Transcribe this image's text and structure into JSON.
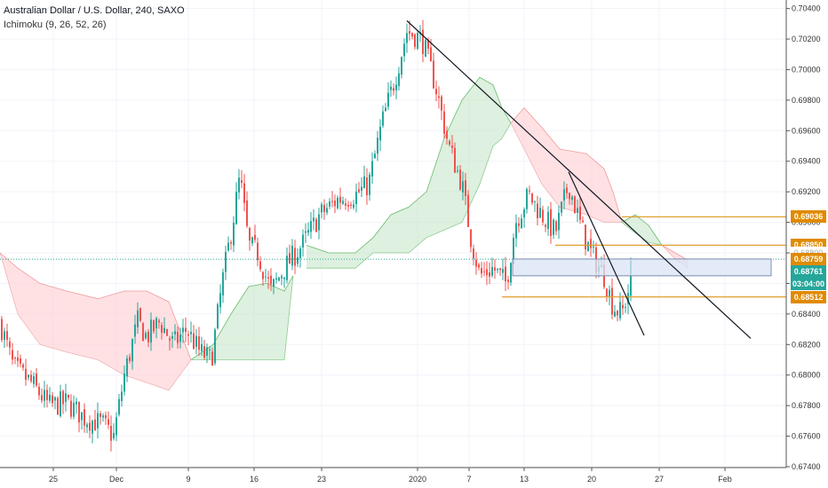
{
  "header": {
    "title": "Australian Dollar / U.S. Dollar, 240, SAXO",
    "indicator": "Ichimoku (9, 26, 52, 26)"
  },
  "colors": {
    "up": "#26a69a",
    "down": "#ef5350",
    "cloud_bull": "#c8e6c9",
    "cloud_bear": "#ffcdd2",
    "level_line": "#e0a030",
    "level_box_bg": "#e08a00",
    "current_box_bg": "#26a69a",
    "zone_fill": "#dbe4f5",
    "trendline": "#131722"
  },
  "chart_data": {
    "type": "candlestick",
    "title": "Australian Dollar / U.S. Dollar, 240, SAXO",
    "indicator": "Ichimoku (9, 26, 52, 26)",
    "ylim": [
      0.674,
      0.7045
    ],
    "y_ticks": [
      "0.70400",
      "0.70200",
      "0.70000",
      "0.69800",
      "0.69600",
      "0.69400",
      "0.69200",
      "0.69000",
      "0.68800",
      "0.68600",
      "0.68400",
      "0.68200",
      "0.68000",
      "0.67800",
      "0.67600",
      "0.67400"
    ],
    "x_ticks": [
      "25",
      "Dec",
      "9",
      "16",
      "23",
      "2020",
      "7",
      "13",
      "20",
      "27",
      "Feb"
    ],
    "path": [
      [
        0,
        0.6835
      ],
      [
        15,
        0.6805
      ],
      [
        35,
        0.6795
      ],
      [
        55,
        0.678
      ],
      [
        75,
        0.6782
      ],
      [
        95,
        0.6772
      ],
      [
        115,
        0.6768
      ],
      [
        128,
        0.676
      ],
      [
        140,
        0.68
      ],
      [
        155,
        0.6835
      ],
      [
        165,
        0.6825
      ],
      [
        180,
        0.6835
      ],
      [
        195,
        0.682
      ],
      [
        210,
        0.683
      ],
      [
        225,
        0.6815
      ],
      [
        238,
        0.681
      ],
      [
        250,
        0.686
      ],
      [
        262,
        0.69
      ],
      [
        270,
        0.693
      ],
      [
        280,
        0.6885
      ],
      [
        290,
        0.688
      ],
      [
        305,
        0.6855
      ],
      [
        320,
        0.687
      ],
      [
        340,
        0.6885
      ],
      [
        360,
        0.6905
      ],
      [
        380,
        0.6915
      ],
      [
        400,
        0.6918
      ],
      [
        415,
        0.6925
      ],
      [
        430,
        0.6965
      ],
      [
        445,
        0.6995
      ],
      [
        458,
        0.7025
      ],
      [
        475,
        0.702
      ],
      [
        490,
        0.699
      ],
      [
        505,
        0.695
      ],
      [
        520,
        0.6925
      ],
      [
        530,
        0.689
      ],
      [
        540,
        0.6865
      ],
      [
        555,
        0.687
      ],
      [
        570,
        0.686
      ],
      [
        580,
        0.69
      ],
      [
        595,
        0.6918
      ],
      [
        610,
        0.6905
      ],
      [
        625,
        0.6893
      ],
      [
        640,
        0.6925
      ],
      [
        655,
        0.6895
      ],
      [
        665,
        0.688
      ],
      [
        680,
        0.6865
      ],
      [
        690,
        0.6845
      ],
      [
        700,
        0.684
      ],
      [
        707,
        0.6855
      ],
      [
        710,
        0.6875
      ]
    ],
    "cloud": {
      "bull": [
        {
          "x0": 215,
          "x1": 330,
          "top": [
            [
              215,
              0.681
            ],
            [
              240,
              0.682
            ],
            [
              260,
              0.684
            ],
            [
              280,
              0.6858
            ],
            [
              300,
              0.686
            ],
            [
              320,
              0.6855
            ],
            [
              330,
              0.6865
            ]
          ],
          "bottom": [
            [
              215,
              0.681
            ],
            [
              240,
              0.681
            ],
            [
              260,
              0.681
            ],
            [
              280,
              0.681
            ],
            [
              300,
              0.681
            ],
            [
              320,
              0.681
            ],
            [
              330,
              0.6865
            ]
          ]
        },
        {
          "x0": 345,
          "x1": 575,
          "top": [
            [
              345,
              0.6885
            ],
            [
              370,
              0.688
            ],
            [
              400,
              0.688
            ],
            [
              420,
              0.689
            ],
            [
              440,
              0.6905
            ],
            [
              460,
              0.691
            ],
            [
              480,
              0.692
            ],
            [
              500,
              0.6955
            ],
            [
              520,
              0.698
            ],
            [
              540,
              0.6995
            ],
            [
              555,
              0.699
            ],
            [
              565,
              0.6975
            ],
            [
              575,
              0.6965
            ]
          ],
          "bottom": [
            [
              345,
              0.687
            ],
            [
              370,
              0.687
            ],
            [
              400,
              0.687
            ],
            [
              420,
              0.688
            ],
            [
              440,
              0.688
            ],
            [
              460,
              0.688
            ],
            [
              480,
              0.689
            ],
            [
              500,
              0.6895
            ],
            [
              520,
              0.69
            ],
            [
              540,
              0.6925
            ],
            [
              555,
              0.695
            ],
            [
              565,
              0.6955
            ],
            [
              575,
              0.6965
            ]
          ]
        },
        {
          "x0": 700,
          "x1": 745,
          "top": [
            [
              700,
              0.69
            ],
            [
              715,
              0.6905
            ],
            [
              730,
              0.6898
            ],
            [
              745,
              0.6885
            ]
          ],
          "bottom": [
            [
              700,
              0.69
            ],
            [
              715,
              0.6893
            ],
            [
              730,
              0.6887
            ],
            [
              745,
              0.6885
            ]
          ]
        }
      ],
      "bear": [
        {
          "x0": 0,
          "x1": 215,
          "top": [
            [
              0,
              0.688
            ],
            [
              20,
              0.687
            ],
            [
              45,
              0.686
            ],
            [
              75,
              0.6855
            ],
            [
              110,
              0.685
            ],
            [
              140,
              0.6855
            ],
            [
              165,
              0.6855
            ],
            [
              190,
              0.6848
            ],
            [
              215,
              0.681
            ]
          ],
          "bottom": [
            [
              0,
              0.688
            ],
            [
              20,
              0.684
            ],
            [
              45,
              0.682
            ],
            [
              75,
              0.6815
            ],
            [
              110,
              0.681
            ],
            [
              140,
              0.68
            ],
            [
              165,
              0.6795
            ],
            [
              190,
              0.679
            ],
            [
              215,
              0.681
            ]
          ]
        },
        {
          "x0": 575,
          "x1": 700,
          "top": [
            [
              575,
              0.6965
            ],
            [
              590,
              0.6975
            ],
            [
              610,
              0.6962
            ],
            [
              630,
              0.6948
            ],
            [
              660,
              0.6945
            ],
            [
              680,
              0.6935
            ],
            [
              690,
              0.692
            ],
            [
              700,
              0.69
            ]
          ],
          "bottom": [
            [
              575,
              0.6965
            ],
            [
              590,
              0.6948
            ],
            [
              610,
              0.6925
            ],
            [
              630,
              0.691
            ],
            [
              660,
              0.6905
            ],
            [
              680,
              0.69
            ],
            [
              690,
              0.69
            ],
            [
              700,
              0.69
            ]
          ]
        },
        {
          "x0": 745,
          "x1": 775,
          "top": [
            [
              745,
              0.6885
            ],
            [
              760,
              0.688
            ],
            [
              775,
              0.6875
            ]
          ],
          "bottom": [
            [
              745,
              0.6885
            ],
            [
              760,
              0.6876
            ],
            [
              775,
              0.687
            ]
          ]
        }
      ]
    },
    "trendlines": [
      {
        "p1": [
          458,
          0.7032
        ],
        "p2": [
          845,
          0.6824
        ]
      },
      {
        "p1": [
          640,
          0.6933
        ],
        "p2": [
          725,
          0.6826
        ]
      }
    ],
    "levels": [
      {
        "value": 0.69036,
        "label": "0.69036",
        "x0": 700
      },
      {
        "value": 0.6885,
        "label": "0.68850",
        "x0": 625
      },
      {
        "value": 0.68512,
        "label": "0.68512",
        "x0": 565
      }
    ],
    "zone": {
      "x0": 577,
      "x1": 868,
      "top": 0.6876,
      "bottom": 0.6865
    },
    "current": {
      "value": 0.68759,
      "label": "0.68759"
    },
    "current_box": {
      "price": "0.68761",
      "countdown": "03:04:00"
    },
    "hidden_label": "0.68800"
  }
}
